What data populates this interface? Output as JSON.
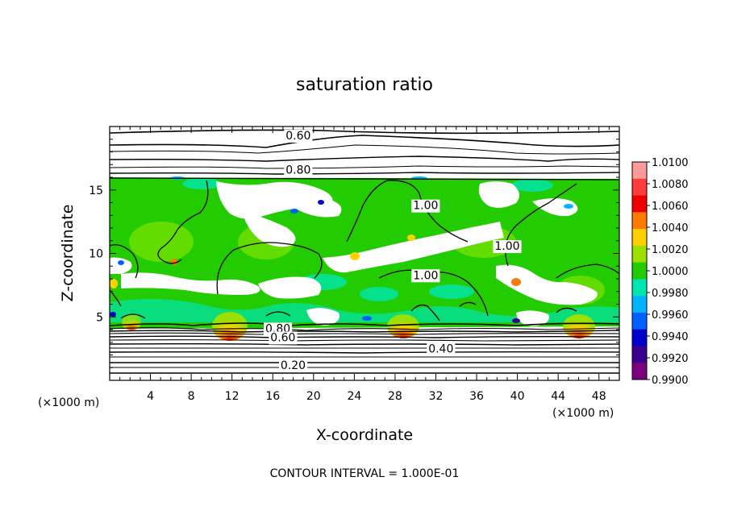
{
  "chart_data": {
    "type": "heatmap",
    "title": "saturation ratio",
    "xlabel": "X-coordinate",
    "ylabel": "Z-coordinate",
    "x_unit_left": "(×1000 m)",
    "x_unit_right": "(×1000 m)",
    "xlim": [
      0,
      50
    ],
    "ylim": [
      0,
      20
    ],
    "x_ticks": [
      4,
      8,
      12,
      16,
      20,
      24,
      28,
      32,
      36,
      40,
      44,
      48
    ],
    "y_ticks": [
      5,
      10,
      15
    ],
    "footer": "CONTOUR INTERVAL = 1.000E-01",
    "colorbar": {
      "levels": [
        "1.0100",
        "1.0080",
        "1.0060",
        "1.0040",
        "1.0020",
        "1.0000",
        "0.9980",
        "0.9960",
        "0.9940",
        "0.9920",
        "0.9900"
      ],
      "colors": [
        "#ff9a9a",
        "#ff3c3c",
        "#ee0000",
        "#ff7a00",
        "#ffd000",
        "#9be000",
        "#22cc00",
        "#00e6b0",
        "#00b4ff",
        "#0060ff",
        "#0000cc",
        "#3a0090",
        "#7a0080"
      ]
    },
    "contour_labels": [
      {
        "text": "0.60",
        "x": 18.5,
        "z": 19.3
      },
      {
        "text": "0.80",
        "x": 18.5,
        "z": 16.6
      },
      {
        "text": "1.00",
        "x": 31.0,
        "z": 13.8
      },
      {
        "text": "1.00",
        "x": 39.0,
        "z": 10.6
      },
      {
        "text": "1.00",
        "x": 31.0,
        "z": 8.3
      },
      {
        "text": "0.80",
        "x": 16.5,
        "z": 4.1
      },
      {
        "text": "0.60",
        "x": 17.0,
        "z": 3.4
      },
      {
        "text": "0.40",
        "x": 32.5,
        "z": 2.5
      },
      {
        "text": "0.20",
        "x": 18.0,
        "z": 1.2
      }
    ]
  }
}
